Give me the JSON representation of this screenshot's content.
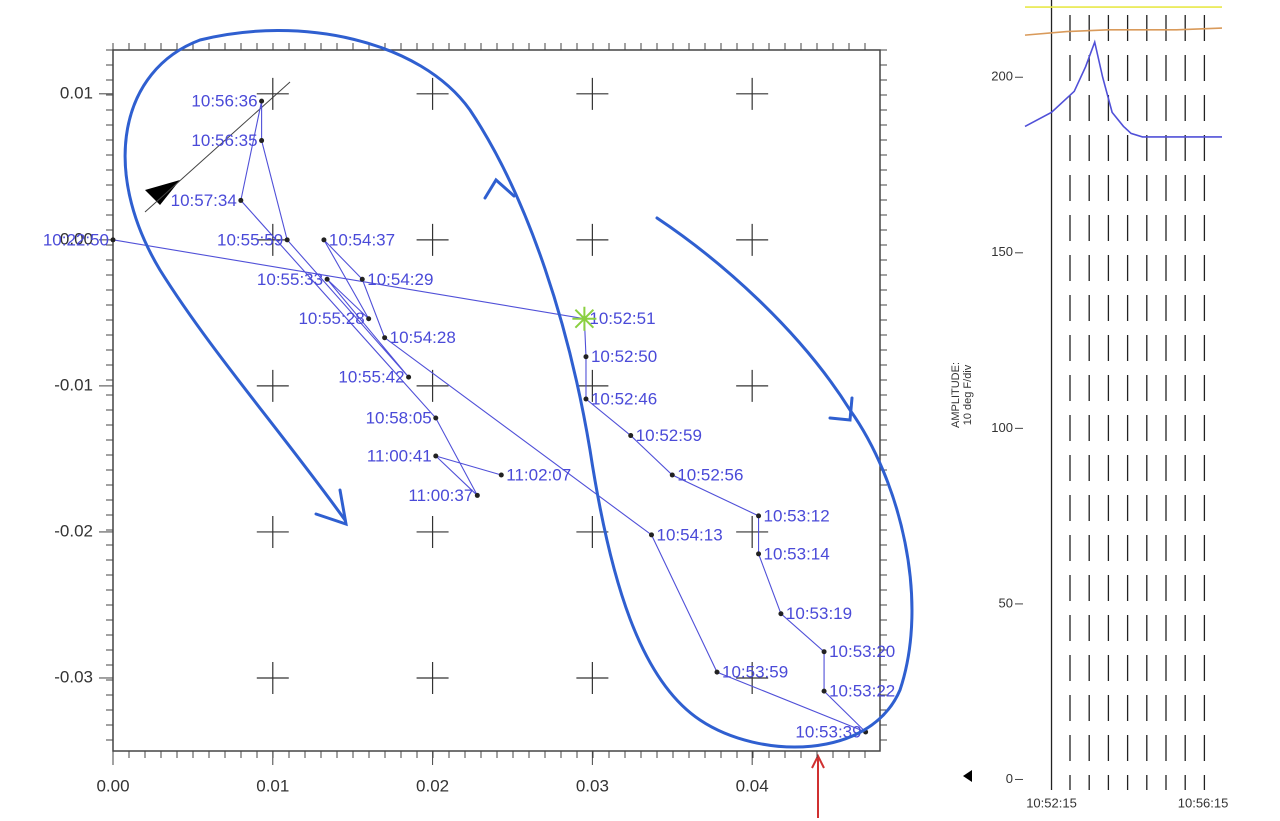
{
  "charts": [
    {
      "type": "line",
      "color": "#5050d8",
      "x": [
        0,
        0.0295,
        0.0296,
        0.0296,
        0.0324,
        0.035,
        0.0404,
        0.0404,
        0.0418,
        0.0445,
        0.0445,
        0.0471,
        0.0378,
        0.0337,
        0.017,
        0.0156,
        0.0132,
        0.016,
        0.0134,
        0.0185,
        0.0109,
        0.0093,
        0.0093,
        0.008,
        0.0202,
        0.0228,
        0.0202,
        0.0243
      ],
      "values": [
        0,
        -0.0054,
        -0.008,
        -0.0109,
        -0.0134,
        -0.0161,
        -0.0189,
        -0.0215,
        -0.0256,
        -0.0282,
        -0.0309,
        -0.0337,
        -0.0296,
        -0.0202,
        -0.0067,
        -0.0027,
        0,
        -0.0054,
        -0.0027,
        -0.0094,
        0,
        0.0068,
        0.0095,
        0.0027,
        -0.0122,
        -0.0175,
        -0.0148,
        -0.0161
      ],
      "labels": [
        "10:22:50",
        "10:52:51",
        "10:52:50",
        "10:52:46",
        "10:52:59",
        "10:52:56",
        "10:53:12",
        "10:53:14",
        "10:53:19",
        "10:53:20",
        "10:53:22",
        "10:53:39",
        "10:53:59",
        "10:54:13",
        "10:54:28",
        "10:54:29",
        "10:54:37",
        "10:55:28",
        "10:55:33",
        "10:55:42",
        "10:55:59",
        "10:56:35",
        "10:56:36",
        "10:57:34",
        "10:58:05",
        "11:00:37",
        "11:00:41",
        "11:02:07"
      ],
      "xlim": [
        0,
        0.048
      ],
      "ylim": [
        -0.035,
        0.013
      ],
      "xticks": [
        {
          "value": 0,
          "label": "0.00"
        },
        0.01,
        0.02,
        0.03,
        0.04
      ],
      "yticks": [
        0.01,
        {
          "value": 0,
          "label": "0.00"
        },
        -0.01,
        -0.02,
        -0.03
      ],
      "grid": "crosses"
    },
    {
      "type": "line",
      "y_label": [
        "AMPLITUDE:",
        "10 deg F/div"
      ],
      "xlim": [
        -0.7,
        4.5
      ],
      "ylim": [
        -3,
        222
      ],
      "xticks": [
        {
          "value": 0,
          "label": "10:52:15"
        },
        {
          "value": 4,
          "label": "10:56:15"
        }
      ],
      "yticks": [
        0,
        50,
        100,
        150,
        200
      ],
      "series": [
        {
          "color": "#e8e84a",
          "x": [
            -0.7,
            4.5
          ],
          "values": [
            220,
            220
          ]
        },
        {
          "color": "#d99a5a",
          "x": [
            -0.7,
            0.4,
            1.5,
            3.3,
            4.5
          ],
          "values": [
            212,
            213,
            213.5,
            213.5,
            214
          ]
        },
        {
          "color": "#5050d8",
          "x": [
            -0.7,
            0,
            0.6,
            0.9,
            1.14,
            1.35,
            1.6,
            1.9,
            2.1,
            2.4,
            4.5
          ],
          "values": [
            186,
            190,
            196,
            203,
            210,
            200,
            190,
            186,
            184,
            183,
            183
          ]
        }
      ]
    }
  ]
}
